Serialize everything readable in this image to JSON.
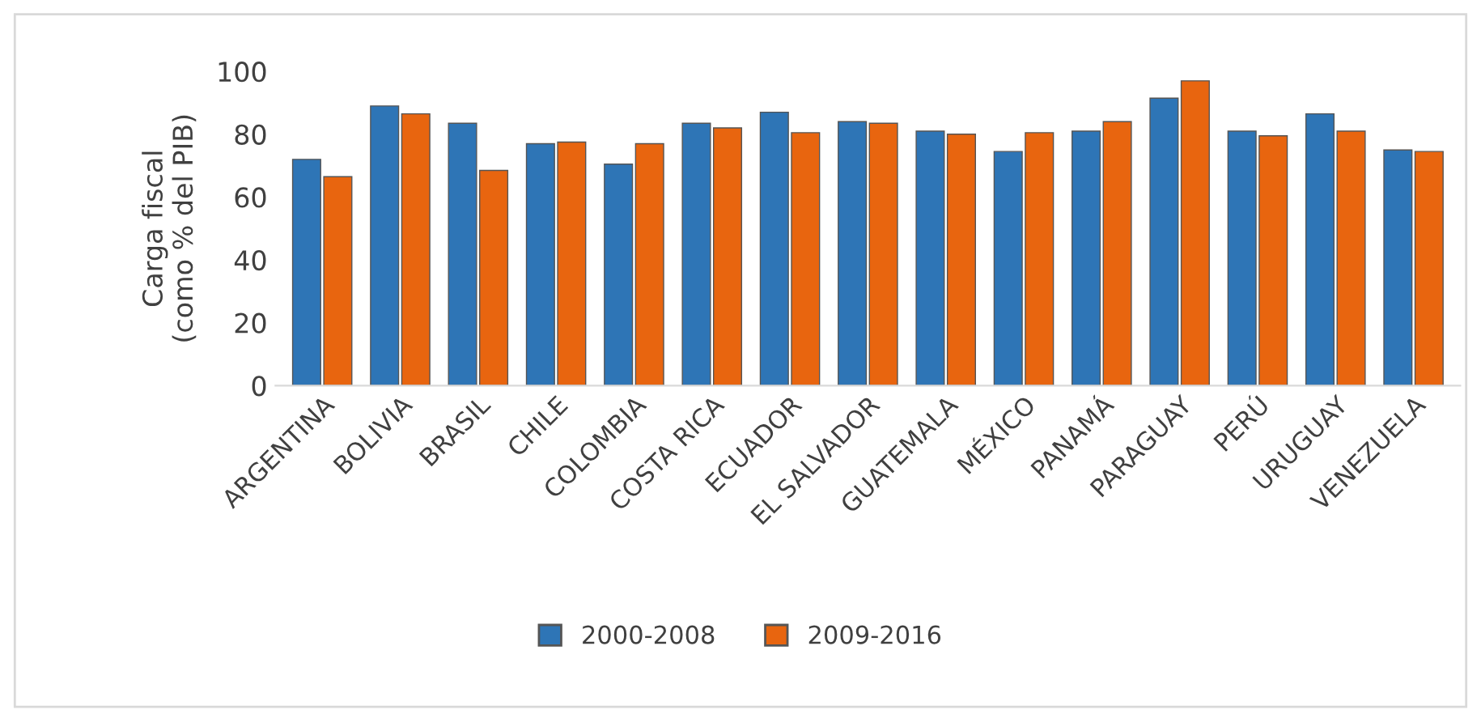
{
  "chart_data": {
    "type": "bar",
    "ylabel": "Carga fiscal\n(como % del PIB)",
    "categories": [
      "ARGENTINA",
      "BOLIVIA",
      "BRASIL",
      "CHILE",
      "COLOMBIA",
      "COSTA RICA",
      "ECUADOR",
      "EL SALVADOR",
      "GUATEMALA",
      "MÉXICO",
      "PANAMÁ",
      "PARAGUAY",
      "PERÚ",
      "URUGUAY",
      "VENEZUELA"
    ],
    "series": [
      {
        "name": "2000-2008",
        "color": "#2e75b6",
        "values": [
          72,
          89,
          83.5,
          77,
          70.5,
          83.5,
          87,
          84,
          81,
          74.5,
          81,
          91.5,
          81,
          86.5,
          75
        ]
      },
      {
        "name": "2009-2016",
        "color": "#e8650f",
        "values": [
          66.5,
          86.5,
          68.5,
          77.5,
          77,
          82,
          80.5,
          83.5,
          80,
          80.5,
          84,
          97,
          79.5,
          81,
          74.5
        ]
      }
    ],
    "ylim": [
      0,
      100
    ],
    "yticks": [
      0,
      20,
      40,
      60,
      80,
      100
    ],
    "grid": false,
    "legend": "bottom"
  }
}
